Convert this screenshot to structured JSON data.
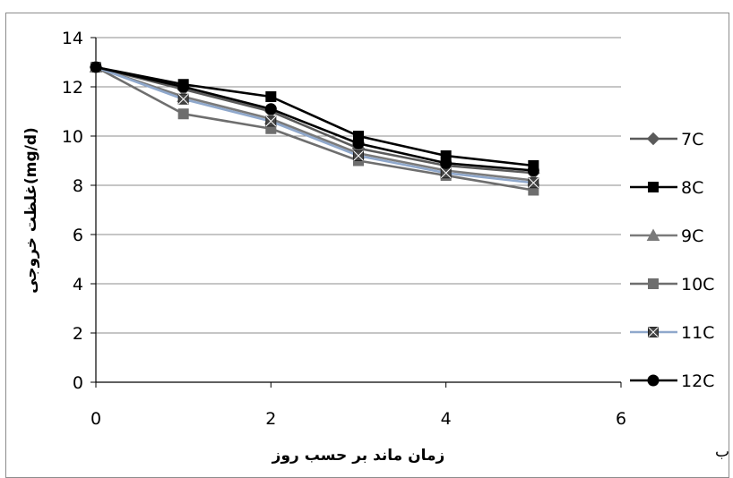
{
  "chart_data": {
    "type": "line",
    "title": "",
    "xlabel": "زمان ماند بر حسب روز",
    "ylabel": "غلظت خروجی(mg/d)",
    "xlim": [
      0,
      6
    ],
    "ylim": [
      0,
      14
    ],
    "xticks": [
      "0",
      "2",
      "4",
      "6"
    ],
    "yticks": [
      "0",
      "2",
      "4",
      "6",
      "8",
      "10",
      "12",
      "14"
    ],
    "x": [
      0,
      1,
      2,
      3,
      4,
      5
    ],
    "grid": "horizontal",
    "legend_position": "right",
    "series": [
      {
        "name": "7C",
        "values": [
          12.8,
          11.9,
          11.0,
          9.5,
          8.8,
          8.5
        ],
        "color": "#5a5a5a",
        "marker": "diamond"
      },
      {
        "name": "8C",
        "values": [
          12.8,
          12.1,
          11.6,
          10.0,
          9.2,
          8.8
        ],
        "color": "#000000",
        "marker": "square"
      },
      {
        "name": "9C",
        "values": [
          12.8,
          11.6,
          10.7,
          9.3,
          8.6,
          8.2
        ],
        "color": "#7a7a7a",
        "marker": "triangle"
      },
      {
        "name": "10C",
        "values": [
          12.8,
          10.9,
          10.3,
          9.0,
          8.4,
          7.8
        ],
        "color": "#6e6e6e",
        "marker": "square"
      },
      {
        "name": "11C",
        "values": [
          12.8,
          11.5,
          10.6,
          9.2,
          8.5,
          8.1
        ],
        "color": "#8fa8cc",
        "marker": "xsquare"
      },
      {
        "name": "12C",
        "values": [
          12.8,
          12.0,
          11.1,
          9.7,
          8.9,
          8.6
        ],
        "color": "#000000",
        "marker": "circle"
      }
    ],
    "stray_text": "ب"
  }
}
